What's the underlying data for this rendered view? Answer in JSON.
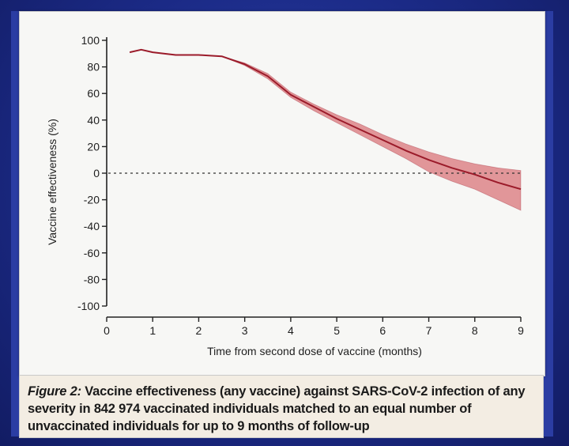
{
  "caption": {
    "label": "Figure 2:",
    "text": " Vaccine effectiveness (any vaccine) against SARS-CoV-2 infection of any severity in 842 974 vaccinated individuals matched to an equal number of unvaccinated individuals for up to 9 months of follow-up"
  },
  "chart_data": {
    "type": "line",
    "xlabel": "Time from second dose of vaccine (months)",
    "ylabel": "Vaccine effectiveness (%)",
    "xlim": [
      0,
      9
    ],
    "ylim": [
      -100,
      100
    ],
    "x_ticks": [
      0,
      1,
      2,
      3,
      4,
      5,
      6,
      7,
      8,
      9
    ],
    "y_ticks": [
      100,
      80,
      60,
      40,
      20,
      0,
      -20,
      -40,
      -60,
      -80,
      -100
    ],
    "x_tick_labels": [
      "0",
      "1",
      "2",
      "3",
      "4",
      "5",
      "6",
      "7",
      "8",
      "9"
    ],
    "y_tick_labels": [
      "100",
      "80",
      "60",
      "40",
      "20",
      "0",
      "-20",
      "-40",
      "-60",
      "-80",
      "-100"
    ],
    "reference_line": {
      "y": 0,
      "style": "dotted"
    },
    "series": [
      {
        "x": [
          0.5,
          0.75,
          1.0,
          1.5,
          2.0,
          2.5,
          3.0,
          3.5,
          4.0,
          4.5,
          5.0,
          5.5,
          6.0,
          6.5,
          7.0,
          7.5,
          8.0,
          8.5,
          9.0
        ],
        "y": [
          91,
          93,
          91,
          89,
          89,
          88,
          82,
          73,
          59,
          50,
          41,
          33,
          25,
          17,
          10,
          4,
          -1,
          -7,
          -12
        ],
        "ci_lower": [
          91,
          93,
          91,
          89,
          89,
          88,
          81,
          71,
          57,
          47,
          38,
          29,
          20,
          11,
          1,
          -6,
          -12,
          -20,
          -28
        ],
        "ci_upper": [
          91,
          93,
          91,
          89,
          89,
          88,
          83,
          75,
          61,
          52,
          44,
          37,
          29,
          22,
          16,
          11,
          7,
          4,
          2
        ],
        "color": "#9b1b2a",
        "ci_color": "#d9757a"
      }
    ]
  }
}
